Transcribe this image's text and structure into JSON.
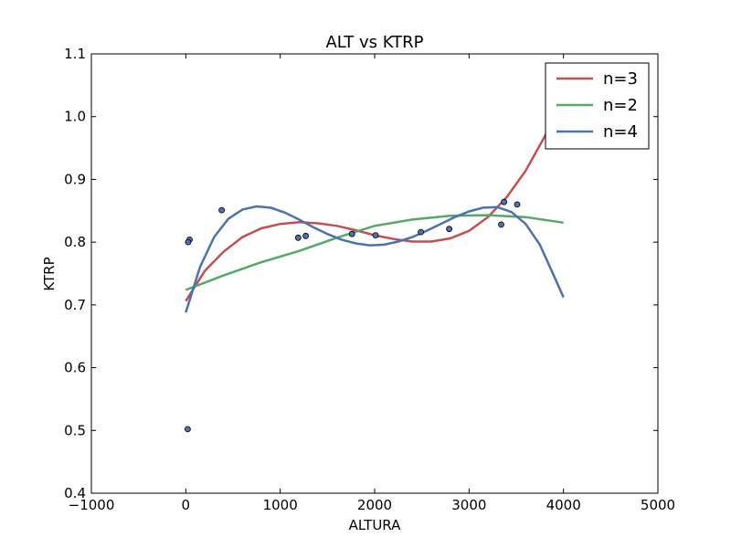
{
  "chart_data": {
    "type": "scatter",
    "title": "ALT vs KTRP",
    "xlabel": "ALTURA",
    "ylabel": "KTRP",
    "xlim": [
      -1000,
      5000
    ],
    "ylim": [
      0.4,
      1.1
    ],
    "xticks": [
      -1000,
      0,
      1000,
      2000,
      3000,
      4000,
      5000
    ],
    "yticks": [
      0.4,
      0.5,
      0.6,
      0.7,
      0.8,
      0.9,
      1.0,
      1.1
    ],
    "grid": false,
    "legend_position": "top-right",
    "points": {
      "color": "#4c72b0",
      "x": [
        20,
        40,
        25,
        380,
        1190,
        1270,
        1760,
        2010,
        2490,
        2790,
        3340,
        3370,
        3510
      ],
      "y": [
        0.502,
        0.804,
        0.8,
        0.851,
        0.807,
        0.81,
        0.813,
        0.811,
        0.816,
        0.821,
        0.828,
        0.864,
        0.86
      ]
    },
    "series": [
      {
        "name": "n=3",
        "color": "#c44e52",
        "x": [
          0,
          200,
          400,
          600,
          800,
          1000,
          1200,
          1400,
          1600,
          1800,
          2000,
          2200,
          2400,
          2600,
          2800,
          3000,
          3200,
          3400,
          3600,
          3800,
          3900
        ],
        "y": [
          0.706,
          0.754,
          0.785,
          0.808,
          0.822,
          0.829,
          0.832,
          0.83,
          0.826,
          0.819,
          0.811,
          0.805,
          0.801,
          0.801,
          0.806,
          0.818,
          0.84,
          0.872,
          0.914,
          0.968,
          1.0
        ]
      },
      {
        "name": "n=2",
        "color": "#55a868",
        "x": [
          0,
          400,
          800,
          1200,
          1600,
          2000,
          2400,
          2800,
          3200,
          3600,
          4000
        ],
        "y": [
          0.724,
          0.747,
          0.768,
          0.786,
          0.807,
          0.826,
          0.836,
          0.842,
          0.843,
          0.84,
          0.831
        ]
      },
      {
        "name": "n=4",
        "color": "#4c72b0",
        "x": [
          0,
          150,
          300,
          450,
          600,
          750,
          900,
          1050,
          1200,
          1350,
          1500,
          1650,
          1800,
          1950,
          2100,
          2250,
          2400,
          2550,
          2700,
          2850,
          3000,
          3150,
          3300,
          3450,
          3600,
          3750,
          3900,
          4000
        ],
        "y": [
          0.688,
          0.76,
          0.808,
          0.837,
          0.852,
          0.857,
          0.855,
          0.847,
          0.836,
          0.824,
          0.813,
          0.804,
          0.798,
          0.795,
          0.796,
          0.801,
          0.808,
          0.818,
          0.829,
          0.84,
          0.849,
          0.855,
          0.856,
          0.848,
          0.829,
          0.796,
          0.746,
          0.712
        ]
      }
    ]
  }
}
